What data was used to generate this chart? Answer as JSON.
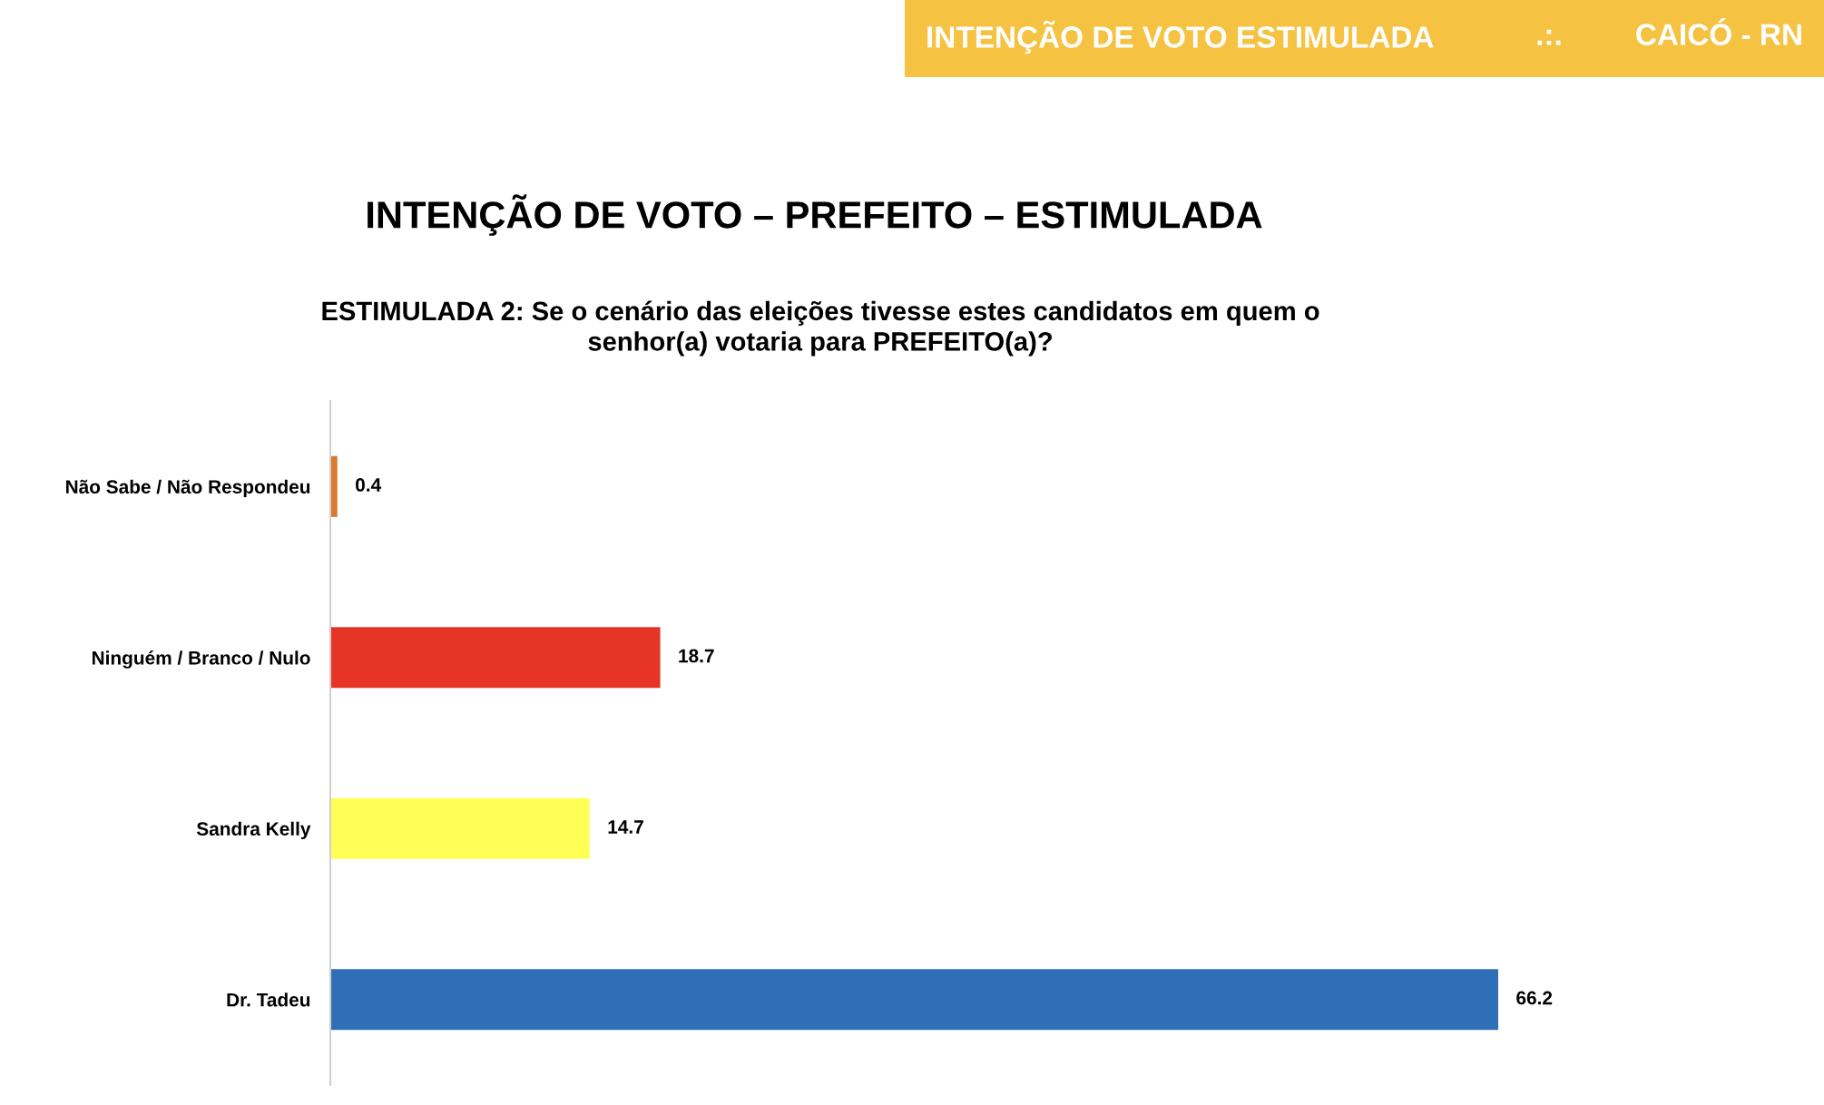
{
  "chart_data": {
    "type": "bar",
    "orientation": "horizontal",
    "title": "INTENÇÃO DE VOTO – PREFEITO – ESTIMULADA",
    "subtitle": "ESTIMULADA 2: Se o cenário das eleições tivesse estes candidatos em quem o\nsenhor(a) votaria para PREFEITO(a)?",
    "categories": [
      "Não Sabe / Não Respondeu",
      "Ninguém / Branco / Nulo",
      "Sandra Kelly",
      "Dr. Tadeu"
    ],
    "values": [
      0.4,
      18.7,
      14.7,
      66.2
    ],
    "colors": [
      "#d97a30",
      "#e63426",
      "#ffff55",
      "#2e6fb7"
    ],
    "data_labels": true,
    "tick_labels": "y",
    "grid": false,
    "legend": false,
    "annotations": [
      "INTENÇÃO DE VOTO ESTIMULADA",
      ".:.",
      "CAICÓ - RN"
    ]
  }
}
